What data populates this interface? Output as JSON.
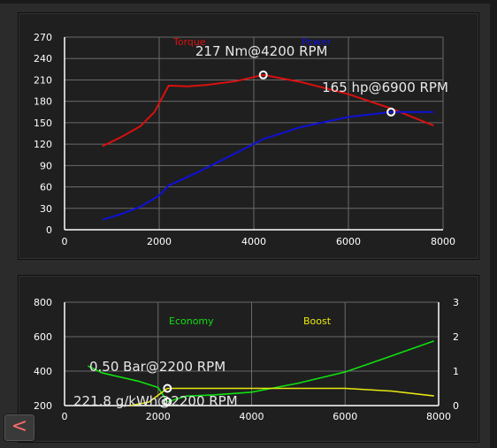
{
  "colors": {
    "torque": "#d81010",
    "power": "#1010d8",
    "economy": "#10e010",
    "boost": "#e8e810",
    "grid": "#6a6a6a",
    "axis": "#ffffff",
    "marker": "#ffffff"
  },
  "back_button": {
    "label": "<"
  },
  "chart_data": [
    {
      "type": "line",
      "xlim": [
        0,
        8000
      ],
      "ylim": [
        0,
        270
      ],
      "x_ticks": [
        "0",
        "2000",
        "4000",
        "6000",
        "8000"
      ],
      "y_ticks": [
        "270",
        "240",
        "210",
        "180",
        "150",
        "120",
        "90",
        "60",
        "30",
        "0"
      ],
      "grid": true,
      "series": [
        {
          "name": "Torque",
          "color": "#d81010",
          "points": [
            [
              800,
              117
            ],
            [
              1200,
              130
            ],
            [
              1600,
              145
            ],
            [
              1900,
              165
            ],
            [
              2200,
              202
            ],
            [
              2600,
              201
            ],
            [
              3000,
              203
            ],
            [
              3600,
              208
            ],
            [
              4200,
              217
            ],
            [
              5000,
              207
            ],
            [
              6000,
              190
            ],
            [
              6900,
              170
            ],
            [
              7800,
              146
            ]
          ]
        },
        {
          "name": "Power",
          "color": "#1010d8",
          "points": [
            [
              800,
              14
            ],
            [
              1200,
              22
            ],
            [
              1600,
              32
            ],
            [
              2000,
              48
            ],
            [
              2200,
              62
            ],
            [
              2800,
              80
            ],
            [
              3400,
              100
            ],
            [
              4200,
              127
            ],
            [
              5000,
              144
            ],
            [
              6000,
              158
            ],
            [
              6900,
              165
            ],
            [
              7800,
              165
            ]
          ]
        }
      ],
      "annotations": [
        {
          "text": "217 Nm@4200 RPM",
          "x": 4200,
          "y": 217
        },
        {
          "text": "165 hp@6900 RPM",
          "x": 6900,
          "y": 165
        }
      ]
    },
    {
      "type": "line",
      "xlim": [
        0,
        8000
      ],
      "ylim": [
        200,
        800
      ],
      "y2lim": [
        0,
        3
      ],
      "x_ticks": [
        "0",
        "2000",
        "4000",
        "6000",
        "8000"
      ],
      "y_ticks": [
        "800",
        "600",
        "400",
        "200"
      ],
      "y2_ticks": [
        "3",
        "2",
        "1",
        "0"
      ],
      "grid": true,
      "series": [
        {
          "name": "Economy",
          "color": "#10e010",
          "axis": "left",
          "points": [
            [
              500,
              430
            ],
            [
              800,
              390
            ],
            [
              1200,
              365
            ],
            [
              1600,
              340
            ],
            [
              2000,
              305
            ],
            [
              2200,
              222
            ],
            [
              2600,
              255
            ],
            [
              3200,
              262
            ],
            [
              4000,
              278
            ],
            [
              5000,
              330
            ],
            [
              6000,
              395
            ],
            [
              6800,
              470
            ],
            [
              7900,
              575
            ]
          ]
        },
        {
          "name": "Boost",
          "color": "#e8e810",
          "axis": "right",
          "points": [
            [
              1400,
              0
            ],
            [
              1800,
              0.1
            ],
            [
              2200,
              0.5
            ],
            [
              3000,
              0.5
            ],
            [
              4000,
              0.5
            ],
            [
              5000,
              0.5
            ],
            [
              6000,
              0.5
            ],
            [
              7000,
              0.42
            ],
            [
              7900,
              0.28
            ]
          ]
        }
      ],
      "annotations": [
        {
          "text": "0.50 Bar@2200 RPM",
          "x": 2200,
          "y": 0.5,
          "axis": "right"
        },
        {
          "text": "221.8 g/kWh@2200 RPM",
          "x": 2200,
          "y": 221.8,
          "axis": "left"
        }
      ]
    }
  ]
}
